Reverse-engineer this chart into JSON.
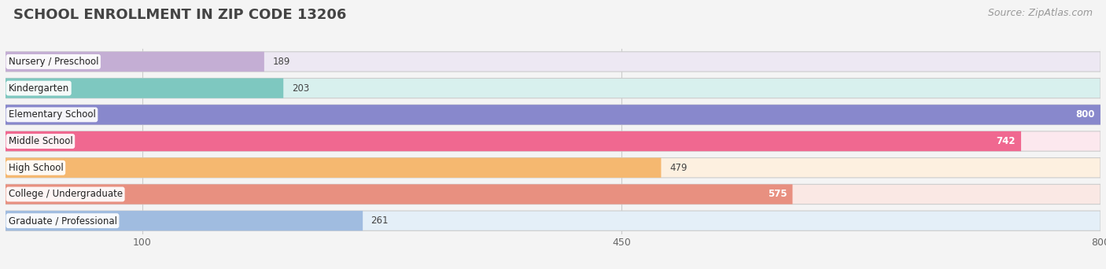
{
  "title": "SCHOOL ENROLLMENT IN ZIP CODE 13206",
  "source": "Source: ZipAtlas.com",
  "categories": [
    "Nursery / Preschool",
    "Kindergarten",
    "Elementary School",
    "Middle School",
    "High School",
    "College / Undergraduate",
    "Graduate / Professional"
  ],
  "values": [
    189,
    203,
    800,
    742,
    479,
    575,
    261
  ],
  "bar_colors": [
    "#c4aed4",
    "#7ec8c0",
    "#8888cc",
    "#f06890",
    "#f5b870",
    "#e89080",
    "#a0bce0"
  ],
  "bar_bg_colors": [
    "#ede8f3",
    "#d8f0ee",
    "#e0e0f0",
    "#fce8ee",
    "#fdf0e0",
    "#fae8e4",
    "#e4eff8"
  ],
  "label_on_white": [
    true,
    true,
    true,
    true,
    true,
    true,
    true
  ],
  "value_inside": [
    false,
    false,
    true,
    true,
    false,
    true,
    false
  ],
  "xlim_min": 0,
  "xlim_max": 800,
  "xticks": [
    100,
    450,
    800
  ],
  "background_color": "#f4f4f4",
  "bar_row_bg": "#ececec",
  "title_fontsize": 13,
  "source_fontsize": 9,
  "bar_fontsize": 8.5,
  "value_fontsize": 8.5
}
